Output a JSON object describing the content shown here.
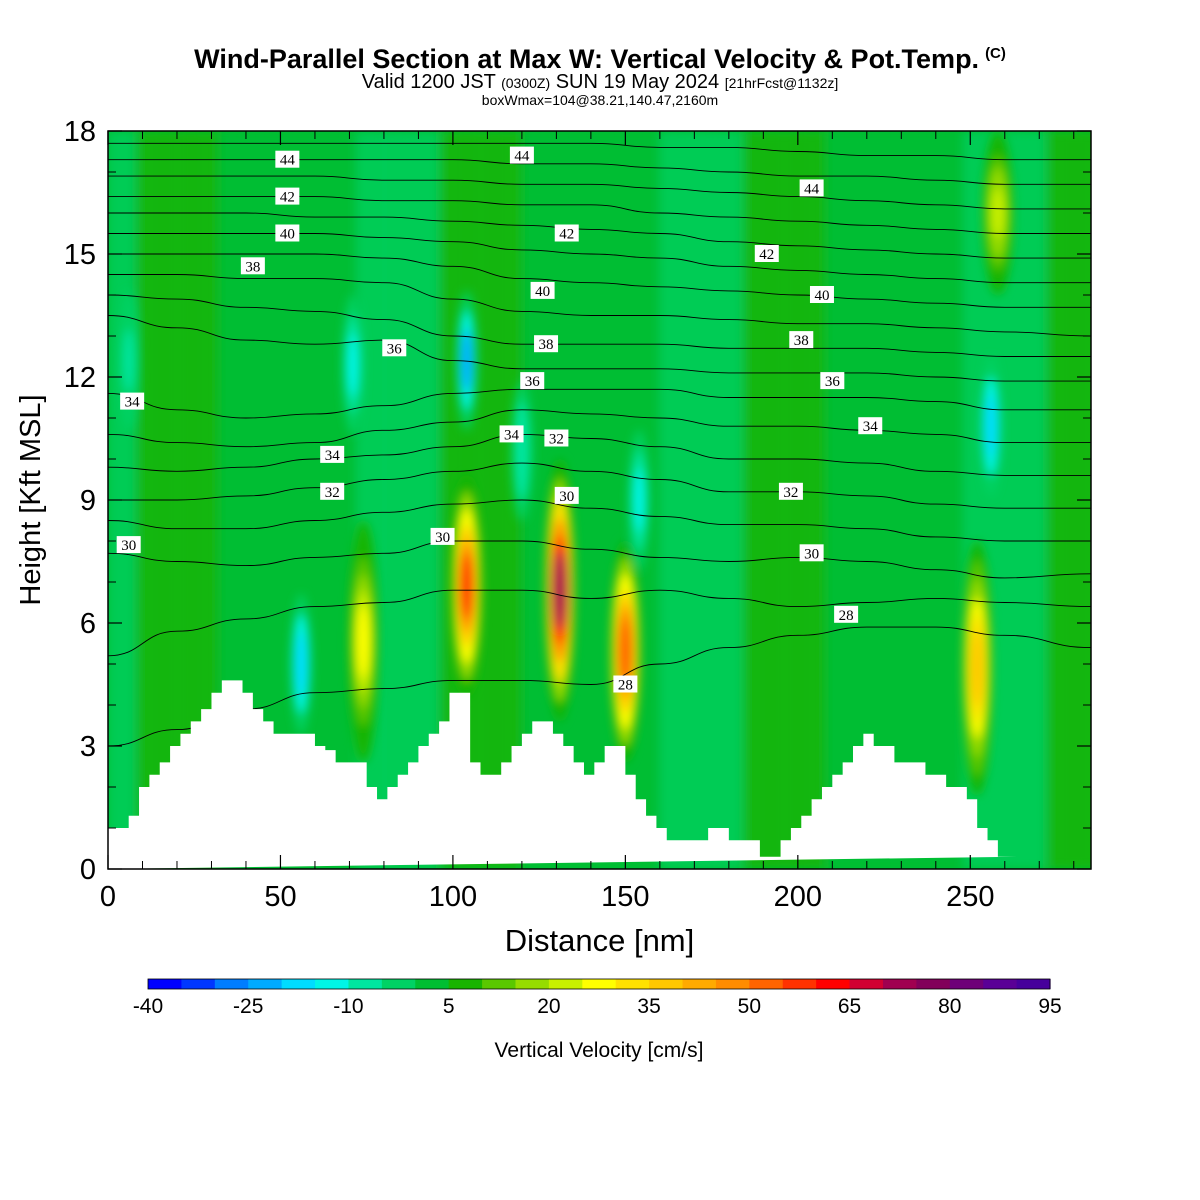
{
  "titles": {
    "main": "Wind-Parallel Section at Max W: Vertical Velocity & Pot.Temp.",
    "copyright": "(C)",
    "valid_a": "Valid 1200 JST",
    "valid_utc": "(0300Z)",
    "valid_b": "SUN 19 May 2024",
    "forecast": "[21hrFcst@1132z]",
    "subtitle": "boxWmax=104@38.21,140.47,2160m"
  },
  "chart_data": {
    "type": "heatmap",
    "xlabel": "Distance [nm]",
    "ylabel": "Height [Kft MSL]",
    "xlim": [
      0,
      285
    ],
    "ylim": [
      0,
      18
    ],
    "x_ticks": [
      0,
      50,
      100,
      150,
      200,
      250
    ],
    "y_ticks": [
      0,
      3,
      6,
      9,
      12,
      15,
      18
    ],
    "colorbar": {
      "label": "Vertical Velocity [cm/s]",
      "min": -40,
      "max": 95,
      "step": 5,
      "tick_labels": [
        "-40",
        "-25",
        "-10",
        "5",
        "20",
        "35",
        "50",
        "65",
        "80",
        "95"
      ],
      "colors": [
        "#0000ff",
        "#0037ff",
        "#007dff",
        "#00aaff",
        "#00dcff",
        "#00f5e6",
        "#00e6a0",
        "#00d264",
        "#00be32",
        "#19b400",
        "#5ac800",
        "#96dc00",
        "#c8f000",
        "#ffff00",
        "#ffe100",
        "#ffc800",
        "#ffaa00",
        "#ff8c00",
        "#ff6400",
        "#ff3200",
        "#ff0000",
        "#d20032",
        "#a00050",
        "#82005a",
        "#6e0078",
        "#5a0096",
        "#46009b"
      ]
    },
    "updrafts": [
      {
        "x": 74,
        "z_bottom": 2.6,
        "z_top": 8.5,
        "w_max": 35
      },
      {
        "x": 104,
        "z_bottom": 4.2,
        "z_top": 9.6,
        "w_max": 80
      },
      {
        "x": 131,
        "z_bottom": 3.6,
        "z_top": 10.0,
        "w_max": 104
      },
      {
        "x": 150,
        "z_bottom": 2.6,
        "z_top": 8.0,
        "w_max": 75
      },
      {
        "x": 252,
        "z_bottom": 1.8,
        "z_top": 8.0,
        "w_max": 50
      },
      {
        "x": 258,
        "z_bottom": 14.0,
        "z_top": 18.0,
        "w_max": 30
      }
    ],
    "downdrafts": [
      {
        "x": 56,
        "z_center": 5.0,
        "w_min": -25
      },
      {
        "x": 71,
        "z_center": 12.3,
        "w_min": -20
      },
      {
        "x": 104,
        "z_center": 12.4,
        "w_min": -35
      },
      {
        "x": 120,
        "z_center": 10.2,
        "w_min": -15
      },
      {
        "x": 154,
        "z_center": 9.0,
        "w_min": -20
      },
      {
        "x": 256,
        "z_center": 10.8,
        "w_min": -30
      },
      {
        "x": 6,
        "z_center": 12.4,
        "w_min": -12
      }
    ],
    "isentrope_labels": [
      {
        "text": "44",
        "x": 52,
        "z": 17.3
      },
      {
        "text": "42",
        "x": 52,
        "z": 16.4
      },
      {
        "text": "40",
        "x": 52,
        "z": 15.5
      },
      {
        "text": "38",
        "x": 42,
        "z": 14.7
      },
      {
        "text": "36",
        "x": 83,
        "z": 12.7
      },
      {
        "text": "34",
        "x": 7,
        "z": 11.4
      },
      {
        "text": "34",
        "x": 65,
        "z": 10.1
      },
      {
        "text": "32",
        "x": 65,
        "z": 9.2
      },
      {
        "text": "30",
        "x": 6,
        "z": 7.9
      },
      {
        "text": "30",
        "x": 97,
        "z": 8.1
      },
      {
        "text": "44",
        "x": 120,
        "z": 17.4
      },
      {
        "text": "42",
        "x": 133,
        "z": 15.5
      },
      {
        "text": "40",
        "x": 126,
        "z": 14.1
      },
      {
        "text": "38",
        "x": 127,
        "z": 12.8
      },
      {
        "text": "36",
        "x": 123,
        "z": 11.9
      },
      {
        "text": "34",
        "x": 117,
        "z": 10.6
      },
      {
        "text": "32",
        "x": 130,
        "z": 10.5
      },
      {
        "text": "30",
        "x": 133,
        "z": 9.1
      },
      {
        "text": "28",
        "x": 150,
        "z": 4.5
      },
      {
        "text": "44",
        "x": 204,
        "z": 16.6
      },
      {
        "text": "42",
        "x": 191,
        "z": 15.0
      },
      {
        "text": "40",
        "x": 207,
        "z": 14.0
      },
      {
        "text": "38",
        "x": 201,
        "z": 12.9
      },
      {
        "text": "36",
        "x": 210,
        "z": 11.9
      },
      {
        "text": "34",
        "x": 221,
        "z": 10.8
      },
      {
        "text": "32",
        "x": 198,
        "z": 9.2
      },
      {
        "text": "30",
        "x": 204,
        "z": 7.7
      },
      {
        "text": "28",
        "x": 214,
        "z": 6.2
      }
    ],
    "isentropes": [
      {
        "theta": 28,
        "x": [
          0,
          20,
          40,
          60,
          80,
          100,
          120,
          140,
          160,
          180,
          200,
          220,
          240,
          260,
          285
        ],
        "z": [
          3.0,
          3.4,
          3.9,
          4.3,
          4.4,
          4.6,
          4.6,
          4.5,
          5.0,
          5.4,
          5.7,
          5.9,
          5.9,
          5.7,
          5.4
        ]
      },
      {
        "theta": 29,
        "x": [
          0,
          20,
          40,
          60,
          80,
          100,
          120,
          140,
          160,
          180,
          200,
          220,
          240,
          260,
          285
        ],
        "z": [
          5.2,
          5.8,
          6.1,
          6.4,
          6.5,
          6.8,
          6.8,
          6.6,
          6.8,
          6.6,
          6.4,
          6.5,
          6.6,
          6.5,
          6.4
        ]
      },
      {
        "theta": 30,
        "x": [
          0,
          20,
          40,
          60,
          80,
          100,
          120,
          140,
          160,
          180,
          200,
          220,
          240,
          260,
          285
        ],
        "z": [
          7.7,
          7.5,
          7.4,
          7.6,
          7.7,
          8.0,
          8.0,
          7.8,
          7.6,
          7.5,
          7.6,
          7.5,
          7.3,
          7.1,
          7.2
        ]
      },
      {
        "theta": 31,
        "x": [
          0,
          20,
          40,
          60,
          80,
          100,
          120,
          140,
          160,
          180,
          200,
          220,
          240,
          260,
          285
        ],
        "z": [
          8.5,
          8.3,
          8.3,
          8.5,
          8.7,
          8.9,
          9.0,
          8.8,
          8.6,
          8.4,
          8.4,
          8.3,
          8.1,
          8.0,
          8.0
        ]
      },
      {
        "theta": 32,
        "x": [
          0,
          20,
          40,
          60,
          80,
          100,
          120,
          140,
          160,
          180,
          200,
          220,
          240,
          260,
          285
        ],
        "z": [
          9.0,
          9.0,
          9.1,
          9.3,
          9.5,
          9.7,
          9.9,
          9.7,
          9.5,
          9.2,
          9.2,
          9.1,
          8.9,
          8.8,
          8.8
        ]
      },
      {
        "theta": 33,
        "x": [
          0,
          20,
          40,
          60,
          80,
          100,
          120,
          140,
          160,
          180,
          200,
          220,
          240,
          260,
          285
        ],
        "z": [
          9.8,
          9.7,
          9.8,
          10.0,
          10.1,
          10.3,
          10.6,
          10.5,
          10.3,
          10.0,
          10.0,
          9.9,
          9.7,
          9.6,
          9.6
        ]
      },
      {
        "theta": 34,
        "x": [
          0,
          20,
          40,
          60,
          80,
          100,
          120,
          140,
          160,
          180,
          200,
          220,
          240,
          260,
          285
        ],
        "z": [
          10.6,
          10.4,
          10.3,
          10.4,
          10.7,
          10.9,
          11.2,
          11.1,
          11.0,
          10.8,
          10.8,
          10.7,
          10.6,
          10.4,
          10.4
        ]
      },
      {
        "theta": 35,
        "x": [
          0,
          20,
          40,
          60,
          80,
          100,
          120,
          140,
          160,
          180,
          200,
          220,
          240,
          260,
          285
        ],
        "z": [
          11.6,
          11.2,
          11.0,
          11.1,
          11.3,
          11.6,
          11.7,
          11.7,
          11.7,
          11.5,
          11.5,
          11.5,
          11.4,
          11.2,
          11.2
        ]
      },
      {
        "theta": 36,
        "x": [
          0,
          20,
          40,
          60,
          80,
          100,
          120,
          140,
          160,
          180,
          200,
          220,
          240,
          260,
          285
        ],
        "z": [
          13.5,
          13.2,
          12.9,
          12.8,
          12.9,
          12.4,
          12.2,
          12.2,
          12.2,
          12.1,
          12.1,
          12.1,
          12.0,
          11.9,
          11.9
        ]
      },
      {
        "theta": 37,
        "x": [
          0,
          20,
          40,
          60,
          80,
          100,
          120,
          140,
          160,
          180,
          200,
          220,
          240,
          260,
          285
        ],
        "z": [
          14.0,
          13.9,
          13.7,
          13.6,
          13.4,
          13.0,
          12.8,
          12.8,
          12.8,
          12.7,
          12.7,
          12.7,
          12.6,
          12.5,
          12.5
        ]
      },
      {
        "theta": 38,
        "x": [
          0,
          20,
          40,
          60,
          80,
          100,
          120,
          140,
          160,
          180,
          200,
          220,
          240,
          260,
          285
        ],
        "z": [
          14.5,
          14.5,
          14.4,
          14.4,
          14.3,
          13.9,
          13.6,
          13.5,
          13.5,
          13.4,
          13.3,
          13.3,
          13.2,
          13.1,
          13.0
        ]
      },
      {
        "theta": 39,
        "x": [
          0,
          20,
          40,
          60,
          80,
          100,
          120,
          140,
          160,
          180,
          200,
          220,
          240,
          260,
          285
        ],
        "z": [
          15.0,
          15.0,
          15.0,
          15.0,
          14.9,
          14.7,
          14.4,
          14.3,
          14.2,
          14.1,
          14.0,
          13.9,
          13.8,
          13.7,
          13.7
        ]
      },
      {
        "theta": 40,
        "x": [
          0,
          20,
          40,
          60,
          80,
          100,
          120,
          140,
          160,
          180,
          200,
          220,
          240,
          260,
          285
        ],
        "z": [
          15.5,
          15.5,
          15.5,
          15.5,
          15.4,
          15.3,
          15.1,
          15.0,
          14.9,
          14.7,
          14.6,
          14.5,
          14.4,
          14.3,
          14.3
        ]
      },
      {
        "theta": 41,
        "x": [
          0,
          20,
          40,
          60,
          80,
          100,
          120,
          140,
          160,
          180,
          200,
          220,
          240,
          260,
          285
        ],
        "z": [
          16.0,
          16.0,
          16.0,
          15.9,
          15.9,
          15.8,
          15.7,
          15.6,
          15.5,
          15.3,
          15.2,
          15.1,
          15.0,
          14.9,
          14.9
        ]
      },
      {
        "theta": 42,
        "x": [
          0,
          20,
          40,
          60,
          80,
          100,
          120,
          140,
          160,
          180,
          200,
          220,
          240,
          260,
          285
        ],
        "z": [
          16.4,
          16.4,
          16.4,
          16.4,
          16.3,
          16.3,
          16.2,
          16.2,
          16.0,
          15.9,
          15.8,
          15.7,
          15.6,
          15.5,
          15.5
        ]
      },
      {
        "theta": 43,
        "x": [
          0,
          20,
          40,
          60,
          80,
          100,
          120,
          140,
          160,
          180,
          200,
          220,
          240,
          260,
          285
        ],
        "z": [
          16.9,
          16.9,
          16.9,
          16.9,
          16.8,
          16.8,
          16.7,
          16.7,
          16.6,
          16.5,
          16.4,
          16.3,
          16.2,
          16.1,
          16.1
        ]
      },
      {
        "theta": 44,
        "x": [
          0,
          20,
          40,
          60,
          80,
          100,
          120,
          140,
          160,
          180,
          200,
          220,
          240,
          260,
          285
        ],
        "z": [
          17.3,
          17.3,
          17.3,
          17.3,
          17.3,
          17.3,
          17.2,
          17.2,
          17.1,
          17.0,
          16.9,
          16.9,
          16.8,
          16.7,
          16.7
        ]
      },
      {
        "theta": 45,
        "x": [
          0,
          20,
          40,
          60,
          80,
          100,
          120,
          140,
          160,
          180,
          200,
          220,
          240,
          260,
          285
        ],
        "z": [
          17.7,
          17.7,
          17.7,
          17.7,
          17.7,
          17.7,
          17.7,
          17.7,
          17.6,
          17.6,
          17.5,
          17.4,
          17.4,
          17.3,
          17.3
        ]
      }
    ],
    "terrain": {
      "x": [
        0,
        6,
        6,
        9,
        9,
        12,
        12,
        15,
        15,
        18,
        18,
        21,
        21,
        24,
        24,
        27,
        27,
        30,
        30,
        33,
        33,
        39,
        39,
        42,
        42,
        45,
        45,
        48,
        48,
        51,
        51,
        54,
        54,
        57,
        57,
        60,
        60,
        63,
        63,
        66,
        66,
        72,
        72,
        75,
        75,
        78,
        78,
        81,
        81,
        84,
        84,
        87,
        87,
        90,
        90,
        93,
        93,
        96,
        96,
        99,
        99,
        102,
        102,
        105,
        105,
        108,
        108,
        111,
        111,
        114,
        114,
        117,
        117,
        120,
        120,
        123,
        123,
        126,
        126,
        129,
        129,
        132,
        132,
        135,
        135,
        138,
        138,
        141,
        141,
        144,
        144,
        147,
        147,
        150,
        150,
        153,
        153,
        156,
        156,
        159,
        159,
        162,
        162,
        174,
        174,
        180,
        180,
        183,
        183,
        189,
        189,
        192,
        192,
        195,
        195,
        198,
        198,
        201,
        201,
        204,
        204,
        207,
        207,
        210,
        210,
        213,
        213,
        216,
        216,
        219,
        219,
        222,
        222,
        225,
        225,
        228,
        228,
        237,
        237,
        240,
        240,
        243,
        243,
        246,
        246,
        249,
        249,
        252,
        252,
        255,
        255,
        258,
        258,
        264,
        264,
        267,
        267,
        285
      ],
      "z": [
        1.0,
        1.0,
        1.3,
        1.3,
        2.0,
        2.0,
        2.3,
        2.3,
        2.6,
        2.6,
        3.0,
        3.0,
        3.3,
        3.3,
        3.6,
        3.6,
        3.9,
        3.9,
        4.3,
        4.3,
        4.6,
        4.6,
        4.3,
        4.3,
        3.9,
        3.9,
        3.6,
        3.6,
        3.3,
        3.3,
        3.3,
        3.3,
        3.3,
        3.3,
        3.3,
        3.3,
        3.0,
        3.0,
        2.9,
        2.9,
        2.6,
        2.6,
        2.6,
        2.6,
        2.0,
        2.0,
        1.7,
        1.7,
        2.0,
        2.0,
        2.3,
        2.3,
        2.6,
        2.6,
        3.0,
        3.0,
        3.3,
        3.3,
        3.6,
        3.6,
        4.3,
        4.3,
        4.3,
        4.3,
        2.6,
        2.6,
        2.3,
        2.3,
        2.3,
        2.3,
        2.6,
        2.6,
        3.0,
        3.0,
        3.3,
        3.3,
        3.6,
        3.6,
        3.6,
        3.6,
        3.3,
        3.3,
        3.0,
        3.0,
        2.6,
        2.6,
        2.3,
        2.3,
        2.6,
        2.6,
        3.0,
        3.0,
        3.0,
        3.0,
        2.3,
        2.3,
        1.7,
        1.7,
        1.3,
        1.3,
        1.0,
        1.0,
        0.7,
        0.7,
        1.0,
        1.0,
        0.7,
        0.7,
        0.7,
        0.7,
        0.3,
        0.3,
        0.3,
        0.3,
        0.7,
        0.7,
        1.0,
        1.0,
        1.3,
        1.3,
        1.7,
        1.7,
        2.0,
        2.0,
        2.3,
        2.3,
        2.6,
        2.6,
        3.0,
        3.0,
        3.3,
        3.3,
        3.0,
        3.0,
        3.0,
        3.0,
        2.6,
        2.6,
        2.3,
        2.3,
        2.3,
        2.3,
        2.0,
        2.0,
        2.0,
        2.0,
        1.7,
        1.7,
        1.0,
        1.0,
        0.7,
        0.7,
        0.3,
        0.3
      ]
    }
  }
}
